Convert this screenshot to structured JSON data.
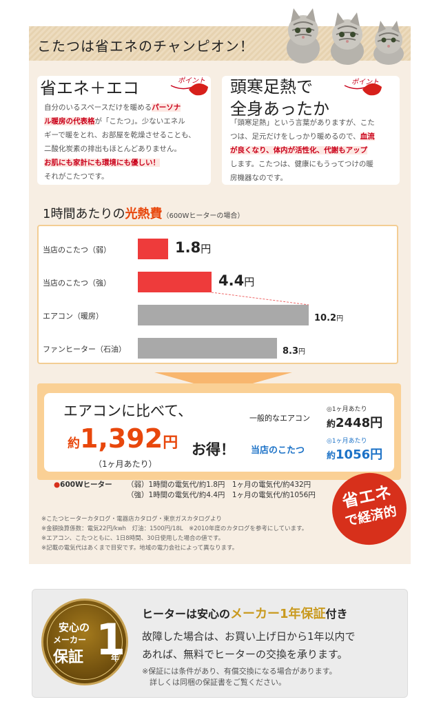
{
  "header": {
    "title": "こたつは省エネのチャンピオン！"
  },
  "cards": {
    "left": {
      "heading": "省エネ＋エコ",
      "point_label": "ポイント",
      "line1_pre": "自分のいるスペースだけを暖める",
      "line1_hl": "パーソナ",
      "line2_hl": "ル暖房の代表格",
      "line2_post": "が「こたつ」。少ないエネル",
      "line3": "ギーで暖をとれ、お部屋を乾燥させることも、",
      "line4": "二酸化炭素の排出もほとんどありません。",
      "line5_hl": "お肌にも家計にも環境にも優しい！",
      "line6": "それがこたつです。"
    },
    "right": {
      "heading_line1": "頭寒足熱で",
      "heading_line2": "全身あったか",
      "point_label": "ポイント",
      "line1": "「頭寒足熱」という言葉がありますが、こた",
      "line2_pre": "つは、足元だけをしっかり暖めるので、",
      "line2_hl": "血流",
      "line3_hl": "が良くなり、体内が活性化、代謝もアップ",
      "line4": "します。こたつは、健康にもうってつけの暖",
      "line5": "房機器なのです。"
    }
  },
  "cost_section": {
    "title_pre": "1時間あたりの",
    "title_accent": "光熱費",
    "title_note": "（600Wヒーターの場合）"
  },
  "chart_data": {
    "type": "bar",
    "orientation": "horizontal",
    "categories": [
      "当店のこたつ（弱）",
      "当店のこたつ（強）",
      "エアコン（暖房）",
      "ファンヒーター（石油）"
    ],
    "values": [
      1.8,
      4.4,
      10.2,
      8.3
    ],
    "value_labels": [
      "1.8",
      "4.4",
      "10.2",
      "8.3"
    ],
    "unit": "円",
    "colors": [
      "#ee3b3b",
      "#ee3b3b",
      "#a9a9a9",
      "#a9a9a9"
    ],
    "xlim": [
      0,
      10.2
    ]
  },
  "result": {
    "compare": "エアコンに比べて、",
    "saving_prefix": "約",
    "saving_value": "1,392",
    "saving_unit": "円",
    "otoku": "お得！",
    "per_month": "（1ヶ月あたり）",
    "general_label": "一般的なエアコン",
    "general_month": "◎1ヶ月あたり",
    "general_prefix": "約",
    "general_value": "2448円",
    "ours_label": "当店のこたつ",
    "ours_month": "◎1ヶ月あたり",
    "ours_prefix": "約",
    "ours_value": "1056円",
    "ours_color": "#1c72c7",
    "accent_color": "#e8470c"
  },
  "specs": {
    "bullet": "●",
    "label": "600Wヒーター",
    "weak_row": "（弱）1時間の電気代/約1.8円　1ヶ月の電気代/約432円",
    "strong_row": "（強）1時間の電気代/約4.4円　1ヶ月の電気代/約1056円"
  },
  "badge": {
    "line1": "省エネ",
    "line2": "で経済的",
    "color": "#d7301b"
  },
  "notes": [
    "※こたつヒーターカタログ・電器店カタログ・東京ガスカタログより",
    "※金額換算係数：電気22円/kwh　灯油：1500円/18L　※2010年度のカタログを参考にしています。",
    "※エアコン、こたつともに、1日8時間、30日使用した場合の値です。",
    "※記載の電気代はあくまで目安です。地域の電力会社によって異なります。"
  ],
  "warranty": {
    "seal_line1": "安心の",
    "seal_line2": "メーカー",
    "seal_line3": "保証",
    "seal_big": "1",
    "seal_year": "年",
    "heading_pre": "ヒーターは安心の",
    "heading_gold": "メーカー1年保証",
    "heading_post": "付き",
    "body_line1": "故障した場合は、お買い上げ日から1年以内で",
    "body_line2": "あれば、無料でヒーターの交換を承ります。",
    "note_line1": "※保証には条件があり、有償交換になる場合があります。",
    "note_line2": "　詳しくは同梱の保証書をご覧ください。",
    "gold_color": "#c99a1f"
  }
}
